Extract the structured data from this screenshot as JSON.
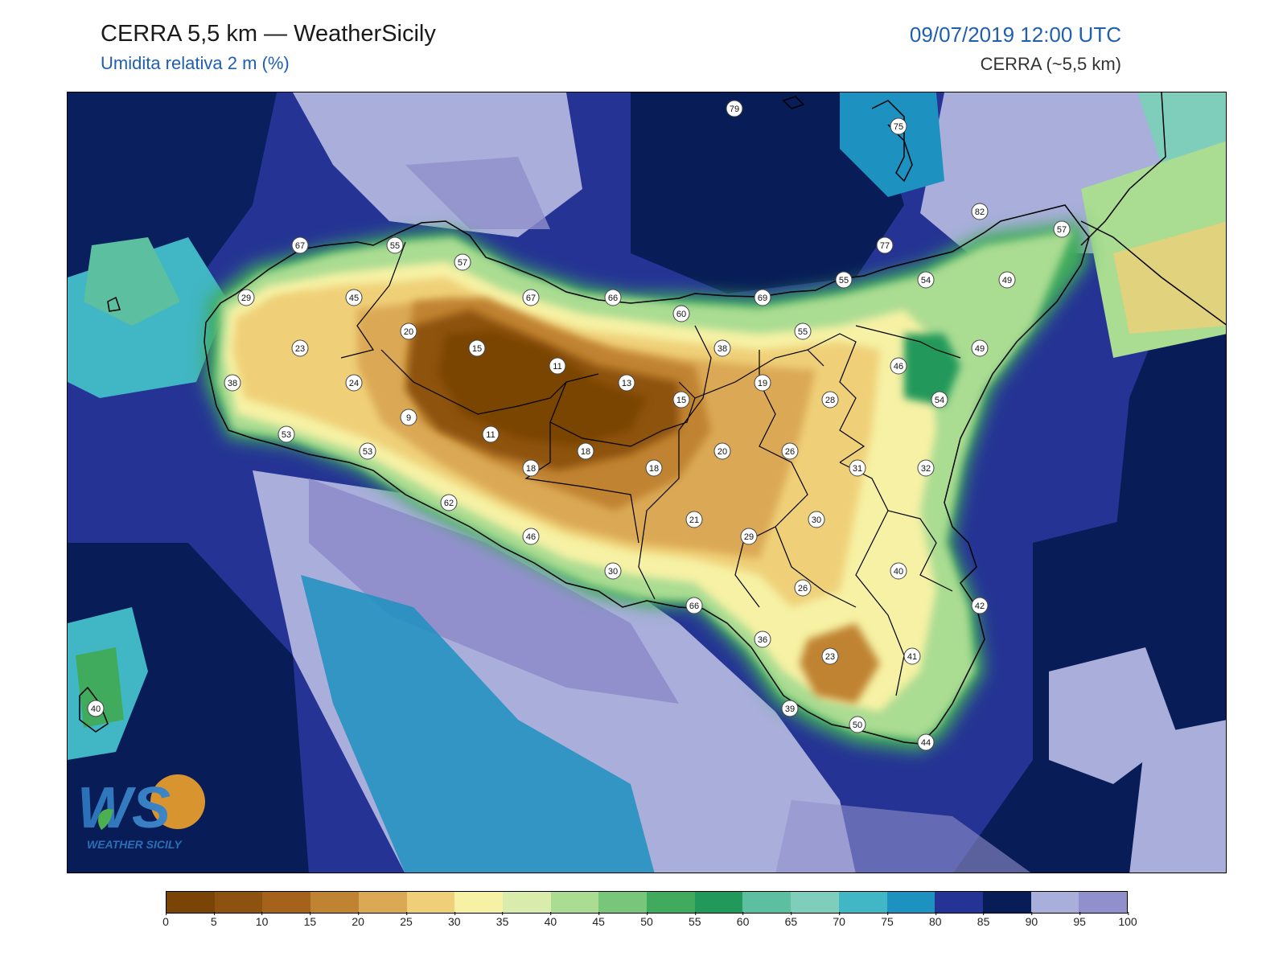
{
  "header": {
    "title": "CERRA 5,5 km — WeatherSicily",
    "subtitle": "Umidita relativa 2 m (%)",
    "datetime": "09/07/2019 12:00 UTC",
    "model": "CERRA (~5,5 km)"
  },
  "logo": {
    "text": "WS",
    "caption": "WEATHER SICILY"
  },
  "colorbar": {
    "ticks": [
      "0",
      "5",
      "10",
      "15",
      "20",
      "25",
      "30",
      "35",
      "40",
      "45",
      "50",
      "55",
      "60",
      "65",
      "70",
      "75",
      "80",
      "85",
      "90",
      "95",
      "100"
    ],
    "colors": [
      "#7a4406",
      "#8e5210",
      "#a5621b",
      "#c08331",
      "#dba955",
      "#efd078",
      "#f6f1a4",
      "#d9ecab",
      "#aadc92",
      "#78c679",
      "#41ab5d",
      "#21995a",
      "#5cbf9f",
      "#7fcdbb",
      "#41b6c4",
      "#1d91c0",
      "#253494",
      "#081d58",
      "#a9aedb",
      "#9190cc"
    ]
  },
  "stations": [
    {
      "v": "79"
    },
    {
      "v": "75"
    },
    {
      "v": "82"
    },
    {
      "v": "57"
    },
    {
      "v": "77"
    },
    {
      "v": "55"
    },
    {
      "v": "54"
    },
    {
      "v": "49"
    },
    {
      "v": "69"
    },
    {
      "v": "60"
    },
    {
      "v": "66"
    },
    {
      "v": "67"
    },
    {
      "v": "57"
    },
    {
      "v": "55"
    },
    {
      "v": "67"
    },
    {
      "v": "29"
    },
    {
      "v": "45"
    },
    {
      "v": "20"
    },
    {
      "v": "15"
    },
    {
      "v": "11"
    },
    {
      "v": "13"
    },
    {
      "v": "15"
    },
    {
      "v": "38"
    },
    {
      "v": "55"
    },
    {
      "v": "49"
    },
    {
      "v": "46"
    },
    {
      "v": "54"
    },
    {
      "v": "23"
    },
    {
      "v": "24"
    },
    {
      "v": "38"
    },
    {
      "v": "9"
    },
    {
      "v": "11"
    },
    {
      "v": "19"
    },
    {
      "v": "28"
    },
    {
      "v": "53"
    },
    {
      "v": "53"
    },
    {
      "v": "18"
    },
    {
      "v": "18"
    },
    {
      "v": "18"
    },
    {
      "v": "20"
    },
    {
      "v": "26"
    },
    {
      "v": "31"
    },
    {
      "v": "32"
    },
    {
      "v": "62"
    },
    {
      "v": "21"
    },
    {
      "v": "30"
    },
    {
      "v": "29"
    },
    {
      "v": "46"
    },
    {
      "v": "30"
    },
    {
      "v": "40"
    },
    {
      "v": "26"
    },
    {
      "v": "66"
    },
    {
      "v": "42"
    },
    {
      "v": "36"
    },
    {
      "v": "23"
    },
    {
      "v": "41"
    },
    {
      "v": "40"
    },
    {
      "v": "39"
    },
    {
      "v": "50"
    },
    {
      "v": "44"
    }
  ]
}
